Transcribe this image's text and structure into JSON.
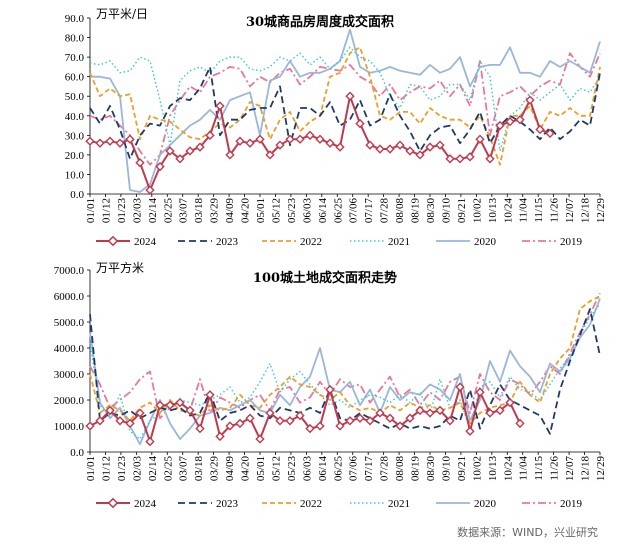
{
  "source_note": "数据来源：WIND，兴业研究",
  "colors": {
    "2024": "#c0394d",
    "2023": "#1f3a68",
    "2022": "#e8a02a",
    "2021": "#3fc8d8",
    "2020": "#9ab6d8",
    "2019": "#e8789a"
  },
  "chart_data": [
    {
      "type": "line",
      "title": "30城商品房周度成交面积",
      "unit_label": "万平米/日",
      "ylim": [
        0,
        90
      ],
      "yticks": [
        "0.0",
        "10.0",
        "20.0",
        "30.0",
        "40.0",
        "50.0",
        "60.0",
        "70.0",
        "80.0",
        "90.0"
      ],
      "x_labels": [
        "01/01",
        "01/12",
        "01/23",
        "02/03",
        "02/14",
        "02/25",
        "03/07",
        "03/18",
        "03/29",
        "04/09",
        "04/20",
        "05/01",
        "05/12",
        "05/23",
        "06/03",
        "06/14",
        "06/25",
        "07/06",
        "07/17",
        "07/28",
        "08/08",
        "08/19",
        "08/30",
        "09/10",
        "09/21",
        "10/02",
        "10/13",
        "10/24",
        "11/04",
        "11/15",
        "11/26",
        "12/07",
        "12/18",
        "12/29"
      ],
      "n_points": 52,
      "series": [
        {
          "name": "2024",
          "values": [
            27,
            26,
            27,
            26,
            28,
            16,
            2,
            14,
            22,
            18,
            22,
            24,
            30,
            45,
            20,
            27,
            26,
            28,
            20,
            25,
            28,
            28,
            30,
            28,
            26,
            24,
            50,
            36,
            25,
            23,
            23,
            25,
            22,
            20,
            24,
            25,
            18,
            18,
            19,
            28,
            18,
            35,
            37,
            38,
            48,
            33,
            31
          ]
        },
        {
          "name": "2023",
          "values": [
            44,
            36,
            45,
            33,
            18,
            30,
            36,
            35,
            45,
            49,
            48,
            54,
            65,
            30,
            38,
            38,
            43,
            44,
            44,
            55,
            25,
            44,
            44,
            40,
            47,
            35,
            38,
            48,
            35,
            38,
            51,
            40,
            32,
            22,
            30,
            34,
            35,
            26,
            33,
            42,
            26,
            35,
            40,
            37,
            33,
            28,
            34,
            28,
            32,
            38,
            35,
            62
          ]
        },
        {
          "name": "2022",
          "values": [
            62,
            50,
            54,
            50,
            51,
            28,
            40,
            38,
            37,
            33,
            29,
            28,
            32,
            36,
            34,
            38,
            47,
            45,
            28,
            38,
            42,
            32,
            37,
            40,
            60,
            62,
            72,
            75,
            60,
            40,
            38,
            42,
            42,
            36,
            44,
            40,
            38,
            38,
            34,
            40,
            29,
            15,
            40,
            40,
            45,
            33,
            42,
            40,
            44,
            40,
            40,
            65
          ]
        },
        {
          "name": "2021",
          "values": [
            67,
            66,
            68,
            62,
            63,
            70,
            68,
            48,
            25,
            58,
            63,
            65,
            62,
            68,
            70,
            70,
            64,
            63,
            65,
            70,
            68,
            72,
            66,
            70,
            64,
            68,
            75,
            70,
            68,
            62,
            50,
            44,
            56,
            55,
            48,
            50,
            56,
            56,
            48,
            68,
            60,
            22,
            40,
            44,
            52,
            48,
            52,
            56,
            48,
            54,
            52,
            60
          ]
        },
        {
          "name": "2020",
          "values": [
            60,
            60,
            59,
            50,
            2,
            1,
            5,
            20,
            25,
            30,
            35,
            38,
            43,
            38,
            48,
            50,
            52,
            30,
            58,
            60,
            68,
            60,
            62,
            62,
            64,
            68,
            84,
            65,
            62,
            63,
            65,
            63,
            62,
            61,
            66,
            62,
            64,
            70,
            55,
            65,
            66,
            66,
            75,
            62,
            62,
            60,
            68,
            65,
            68,
            65,
            62,
            78
          ]
        },
        {
          "name": "2019",
          "values": [
            40,
            38,
            40,
            35,
            30,
            22,
            15,
            20,
            40,
            48,
            55,
            52,
            60,
            62,
            65,
            64,
            55,
            60,
            57,
            62,
            64,
            56,
            60,
            65,
            64,
            63,
            66,
            60,
            57,
            50,
            56,
            48,
            52,
            55,
            54,
            58,
            50,
            56,
            45,
            68,
            30,
            50,
            52,
            55,
            50,
            55,
            58,
            56,
            72,
            65,
            60,
            72
          ]
        }
      ]
    },
    {
      "type": "line",
      "title": "100城土地成交面积走势",
      "unit_label": "万平方米",
      "ylim": [
        0,
        7000
      ],
      "yticks": [
        "0.0",
        "1000.0",
        "2000.0",
        "3000.0",
        "4000.0",
        "5000.0",
        "6000.0",
        "7000.0"
      ],
      "x_labels": [
        "01/01",
        "01/12",
        "01/23",
        "02/03",
        "02/14",
        "02/25",
        "03/07",
        "03/18",
        "03/29",
        "04/09",
        "04/20",
        "05/01",
        "05/12",
        "05/23",
        "06/03",
        "06/14",
        "06/25",
        "07/06",
        "07/17",
        "07/28",
        "08/08",
        "08/19",
        "08/30",
        "09/10",
        "09/21",
        "10/02",
        "10/13",
        "10/24",
        "11/04",
        "11/15",
        "11/26",
        "12/07",
        "12/18",
        "12/29"
      ],
      "n_points": 52,
      "series": [
        {
          "name": "2024",
          "values": [
            1000,
            1200,
            1600,
            1200,
            1100,
            1500,
            400,
            1800,
            1800,
            1900,
            1600,
            900,
            2200,
            600,
            1000,
            1100,
            1300,
            500,
            1500,
            1200,
            1200,
            1400,
            900,
            1000,
            2400,
            1000,
            1200,
            1300,
            1200,
            1500,
            1300,
            1000,
            1300,
            1600,
            1500,
            1600,
            1200,
            2500,
            800,
            2300,
            1500,
            1600,
            1900,
            1100
          ]
        },
        {
          "name": "2023",
          "values": [
            5300,
            1200,
            1500,
            1400,
            1600,
            1300,
            1500,
            1700,
            1600,
            1700,
            1400,
            1500,
            2300,
            1200,
            1500,
            1600,
            1800,
            1400,
            1300,
            1700,
            1600,
            1500,
            1700,
            1500,
            2400,
            1300,
            1200,
            1500,
            1300,
            1100,
            900,
            1100,
            900,
            1000,
            900,
            1000,
            1400,
            1200,
            2400,
            900,
            1800,
            2600,
            2000,
            1800,
            1600,
            1400,
            700,
            2400,
            3500,
            4500,
            5500,
            3700
          ]
        },
        {
          "name": "2022",
          "values": [
            3000,
            1500,
            1800,
            1600,
            1200,
            1700,
            1900,
            1500,
            2000,
            1600,
            1500,
            1400,
            1800,
            1600,
            1700,
            2200,
            1800,
            1700,
            2200,
            2500,
            2900,
            2600,
            2500,
            2200,
            2000,
            2300,
            1800,
            1600,
            1700,
            1500,
            1800,
            1600,
            1900,
            1700,
            1800,
            1600,
            1700,
            1900,
            1100,
            1500,
            1700,
            1800,
            1900,
            2700,
            2200,
            1900,
            3000,
            3600,
            4000,
            5500,
            5800,
            6000
          ]
        },
        {
          "name": "2021",
          "values": [
            4200,
            1800,
            1400,
            2200,
            800,
            500,
            1200,
            1500,
            1800,
            2000,
            1900,
            1800,
            2000,
            2200,
            2500,
            1900,
            2100,
            2700,
            3400,
            2300,
            2800,
            3100,
            2600,
            2200,
            1800,
            2000,
            1700,
            2000,
            2200,
            2100,
            1900,
            2200,
            1900,
            2300,
            1500,
            2800,
            1700,
            2000,
            900,
            2500,
            2700,
            2100,
            2900,
            2400,
            2300,
            2000,
            2600,
            3200,
            3700,
            4500,
            5200,
            5700
          ]
        },
        {
          "name": "2020",
          "values": [
            4600,
            1900,
            1300,
            1700,
            1000,
            300,
            1200,
            2000,
            1100,
            500,
            900,
            1400,
            1500,
            1700,
            1600,
            1800,
            2000,
            1600,
            1500,
            2200,
            1800,
            2500,
            2900,
            4000,
            2400,
            2300,
            2700,
            1800,
            2400,
            1500,
            2500,
            2000,
            2300,
            2200,
            2600,
            2400,
            2000,
            3000,
            1200,
            2000,
            3500,
            2700,
            3900,
            3300,
            2900,
            2300,
            3400,
            3100,
            3600,
            4400,
            4900,
            5900
          ]
        },
        {
          "name": "2019",
          "values": [
            3300,
            2600,
            1700,
            2000,
            2300,
            2800,
            3100,
            1300,
            1700,
            1900,
            1600,
            2800,
            1500,
            2100,
            1900,
            1700,
            2000,
            2200,
            1600,
            2400,
            2500,
            1900,
            2100,
            2700,
            2200,
            2800,
            2500,
            2600,
            1900,
            2400,
            2900,
            2100,
            2400,
            1800,
            2300,
            2000,
            2700,
            2900,
            1500,
            3000,
            2300,
            2000,
            2800,
            2600,
            2200,
            2700,
            3300,
            3000,
            3800,
            4600,
            5300,
            6100
          ]
        }
      ]
    }
  ],
  "legend": [
    "2024",
    "2023",
    "2022",
    "2021",
    "2020",
    "2019"
  ]
}
